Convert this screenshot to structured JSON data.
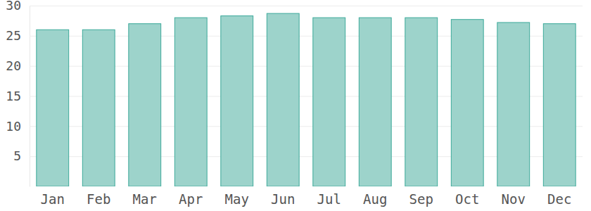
{
  "chart_data": {
    "type": "bar",
    "categories": [
      "Jan",
      "Feb",
      "Mar",
      "Apr",
      "May",
      "Jun",
      "Jul",
      "Aug",
      "Sep",
      "Oct",
      "Nov",
      "Dec"
    ],
    "values": [
      26,
      26,
      27,
      28,
      28.3,
      28.7,
      28,
      28,
      28,
      27.7,
      27.2,
      27
    ],
    "color": "#9dd3cb",
    "ylim": [
      0,
      30
    ],
    "yticks": [
      5,
      10,
      15,
      20,
      25,
      30
    ],
    "grid": true
  }
}
